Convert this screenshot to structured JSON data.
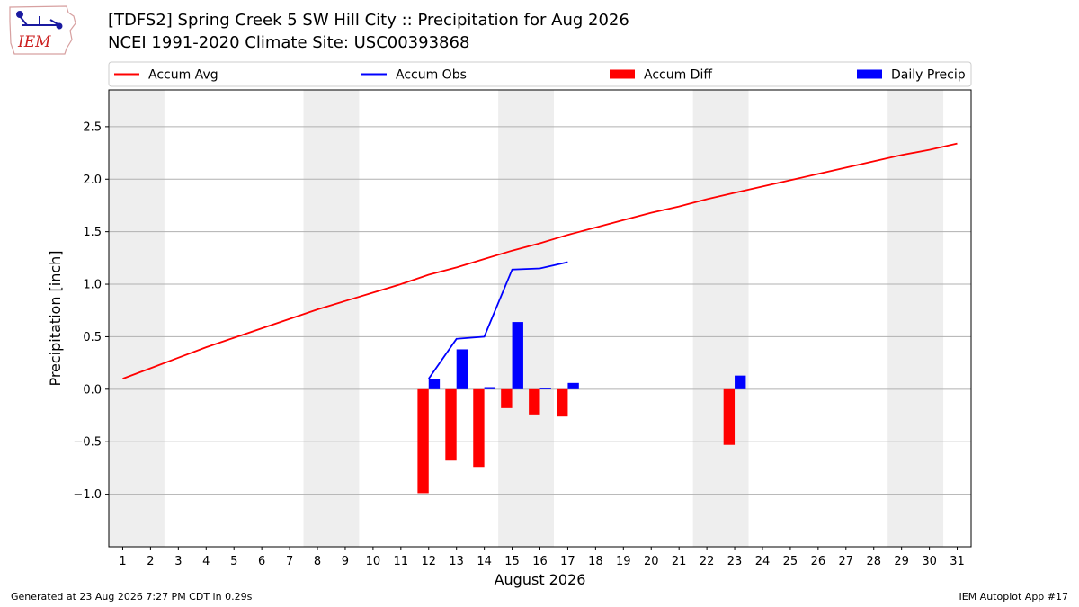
{
  "header": {
    "title_line1": "[TDFS2] Spring Creek 5 SW Hill City :: Precipitation for Aug 2026",
    "title_line2": "NCEI 1991-2020 Climate Site: USC00393868",
    "logo_text": "IEM"
  },
  "footer": {
    "left": "Generated at 23 Aug 2026 7:27 PM CDT in 0.29s",
    "right": "IEM Autoplot App #17"
  },
  "colors": {
    "accum_avg": "#ff0000",
    "accum_obs": "#0000ff",
    "accum_diff": "#ff0000",
    "daily_precip": "#0000ff",
    "weekend_shade": "#eeeeee",
    "grid": "#b0b0b0"
  },
  "chart_data": {
    "type": "line",
    "xlabel": "August 2026",
    "ylabel": "Precipitation [inch]",
    "xlim": [
      0.5,
      31.5
    ],
    "ylim": [
      -1.5,
      2.85
    ],
    "yticks": [
      -1.0,
      -0.5,
      0.0,
      0.5,
      1.0,
      1.5,
      2.0,
      2.5
    ],
    "ytick_labels": [
      "−1.0",
      "−0.5",
      "0.0",
      "0.5",
      "1.0",
      "1.5",
      "2.0",
      "2.5"
    ],
    "xticks": [
      1,
      2,
      3,
      4,
      5,
      6,
      7,
      8,
      9,
      10,
      11,
      12,
      13,
      14,
      15,
      16,
      17,
      18,
      19,
      20,
      21,
      22,
      23,
      24,
      25,
      26,
      27,
      28,
      29,
      30,
      31
    ],
    "grid": "horizontal",
    "legend_position": "top",
    "weekend_spans": [
      [
        1,
        2
      ],
      [
        8,
        9
      ],
      [
        15,
        16
      ],
      [
        22,
        23
      ],
      [
        29,
        30
      ]
    ],
    "series": [
      {
        "name": "Accum Avg",
        "kind": "line",
        "x": [
          1,
          2,
          3,
          4,
          5,
          6,
          7,
          8,
          9,
          10,
          11,
          12,
          13,
          14,
          15,
          16,
          17,
          18,
          19,
          20,
          21,
          22,
          23,
          24,
          25,
          26,
          27,
          28,
          29,
          30,
          31
        ],
        "y": [
          0.1,
          0.2,
          0.3,
          0.4,
          0.49,
          0.58,
          0.67,
          0.76,
          0.84,
          0.92,
          1.0,
          1.09,
          1.16,
          1.24,
          1.32,
          1.39,
          1.47,
          1.54,
          1.61,
          1.68,
          1.74,
          1.81,
          1.87,
          1.93,
          1.99,
          2.05,
          2.11,
          2.17,
          2.23,
          2.28,
          2.34
        ]
      },
      {
        "name": "Accum Obs",
        "kind": "line",
        "x": [
          12,
          13,
          14,
          15,
          16,
          17
        ],
        "y": [
          0.1,
          0.48,
          0.5,
          1.14,
          1.15,
          1.21
        ]
      },
      {
        "name": "Accum Diff",
        "kind": "bar",
        "x": [
          12,
          13,
          14,
          15,
          16,
          17,
          23
        ],
        "y": [
          -0.99,
          -0.68,
          -0.74,
          -0.18,
          -0.24,
          -0.26,
          -0.53
        ]
      },
      {
        "name": "Daily Precip",
        "kind": "bar",
        "x": [
          12,
          13,
          14,
          15,
          16,
          17,
          23
        ],
        "y": [
          0.1,
          0.38,
          0.02,
          0.64,
          0.01,
          0.06,
          0.13
        ]
      }
    ]
  }
}
